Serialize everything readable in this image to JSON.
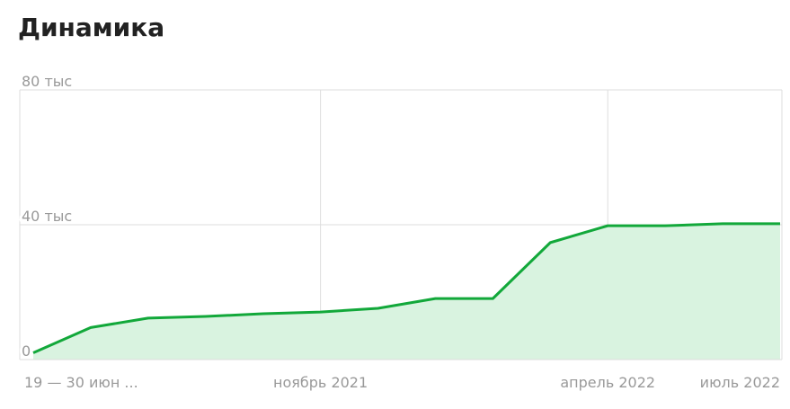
{
  "chart_data": {
    "type": "area",
    "title": "Динамика",
    "categories": [
      "19 — 30 июн ...",
      null,
      null,
      null,
      null,
      "ноябрь 2021",
      null,
      null,
      null,
      null,
      "апрель 2022",
      null,
      null,
      "июль 2022"
    ],
    "values": [
      2000,
      9500,
      12300,
      12800,
      13600,
      14100,
      15200,
      18100,
      18100,
      34700,
      39700,
      39700,
      40300,
      40300
    ],
    "color": "#12a83a",
    "ylim": [
      0,
      80000
    ],
    "yticks": [
      0,
      {
        "value": 40000,
        "label": "40 тыс"
      },
      {
        "value": 80000,
        "label": "80 тыс"
      }
    ],
    "grid": true
  }
}
